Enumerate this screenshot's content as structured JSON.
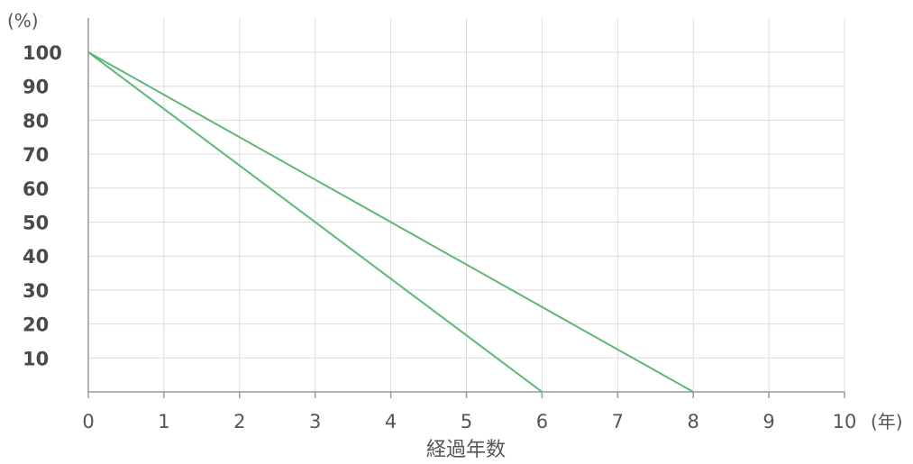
{
  "chart_data": {
    "type": "line",
    "title": "",
    "y_unit": "(%)",
    "x_unit": "(年)",
    "xlabel": "経過年数",
    "x_ticks": [
      0,
      1,
      2,
      3,
      4,
      5,
      6,
      7,
      8,
      9,
      10
    ],
    "y_ticks": [
      10,
      20,
      30,
      40,
      50,
      60,
      70,
      80,
      90,
      100
    ],
    "xlim": [
      0,
      10
    ],
    "ylim": [
      0,
      100
    ],
    "grid": true,
    "series": [
      {
        "values": [
          {
            "x": 0,
            "y": 100
          },
          {
            "x": 6,
            "y": 0
          }
        ]
      },
      {
        "values": [
          {
            "x": 0,
            "y": 100
          },
          {
            "x": 8,
            "y": 0
          }
        ]
      }
    ],
    "colors": {
      "line": "#5cb874",
      "grid": "#dcdcdc",
      "axis": "#9a9a9a"
    }
  }
}
